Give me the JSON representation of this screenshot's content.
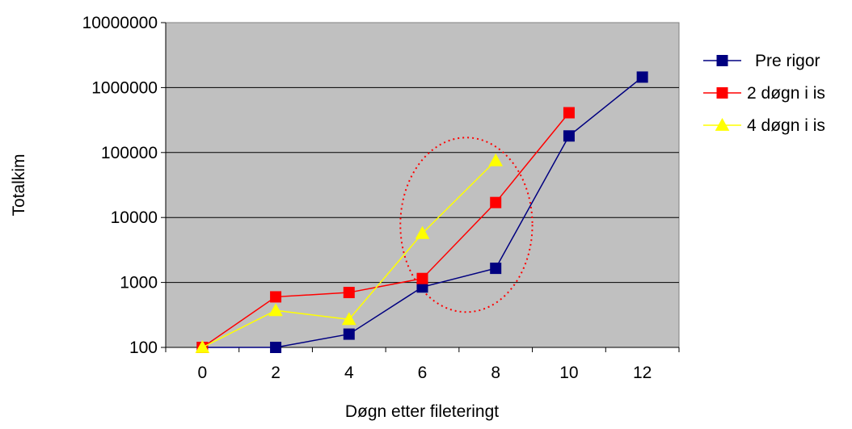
{
  "chart_data": {
    "type": "line",
    "title": "",
    "xlabel": "Døgn etter fileteringt",
    "ylabel": "Totalkim",
    "y_scale": "log",
    "ylim": [
      100,
      10000000
    ],
    "x_ticks": [
      "0",
      "2",
      "4",
      "6",
      "8",
      "10",
      "12"
    ],
    "y_ticks": [
      "100",
      "1000",
      "10000",
      "100000",
      "1000000",
      "10000000"
    ],
    "grid": true,
    "legend_position": "right",
    "plot_background": "#c0c0c0",
    "series": [
      {
        "name": "Pre rigor",
        "color": "#000080",
        "marker": "square",
        "x": [
          0,
          2,
          4,
          6,
          8,
          10,
          12
        ],
        "y": [
          100,
          100,
          160,
          850,
          1650,
          180000,
          1450000
        ]
      },
      {
        "name": "2 døgn i is",
        "color": "#ff0000",
        "marker": "square",
        "x": [
          0,
          2,
          4,
          6,
          8,
          10
        ],
        "y": [
          100,
          600,
          700,
          1150,
          17000,
          410000
        ]
      },
      {
        "name": "4 døgn i is",
        "color": "#ffff00",
        "marker": "triangle",
        "x": [
          0,
          2,
          4,
          6,
          8
        ],
        "y": [
          100,
          370,
          270,
          5700,
          75000
        ]
      }
    ],
    "annotations": [
      {
        "type": "dotted-ellipse",
        "color": "#ff0000",
        "x_range": [
          5.4,
          9.0
        ],
        "y_range": [
          350,
          170000
        ]
      }
    ]
  }
}
